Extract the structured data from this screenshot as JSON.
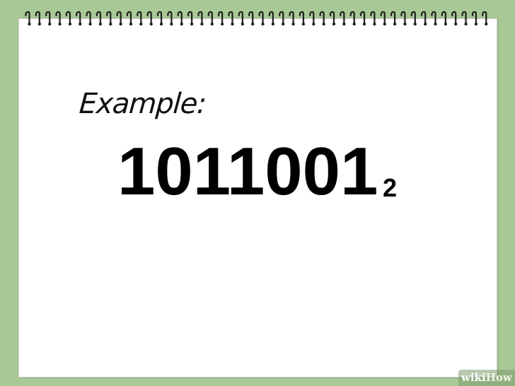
{
  "illustration": {
    "example_label": "Example:",
    "binary_number": "1011001",
    "base_subscript": "2"
  },
  "notebook": {
    "ring_count": 46,
    "background_color": "#a8c896",
    "paper_color": "#ffffff"
  },
  "watermark": {
    "part1": "wiki",
    "part2": "How"
  }
}
